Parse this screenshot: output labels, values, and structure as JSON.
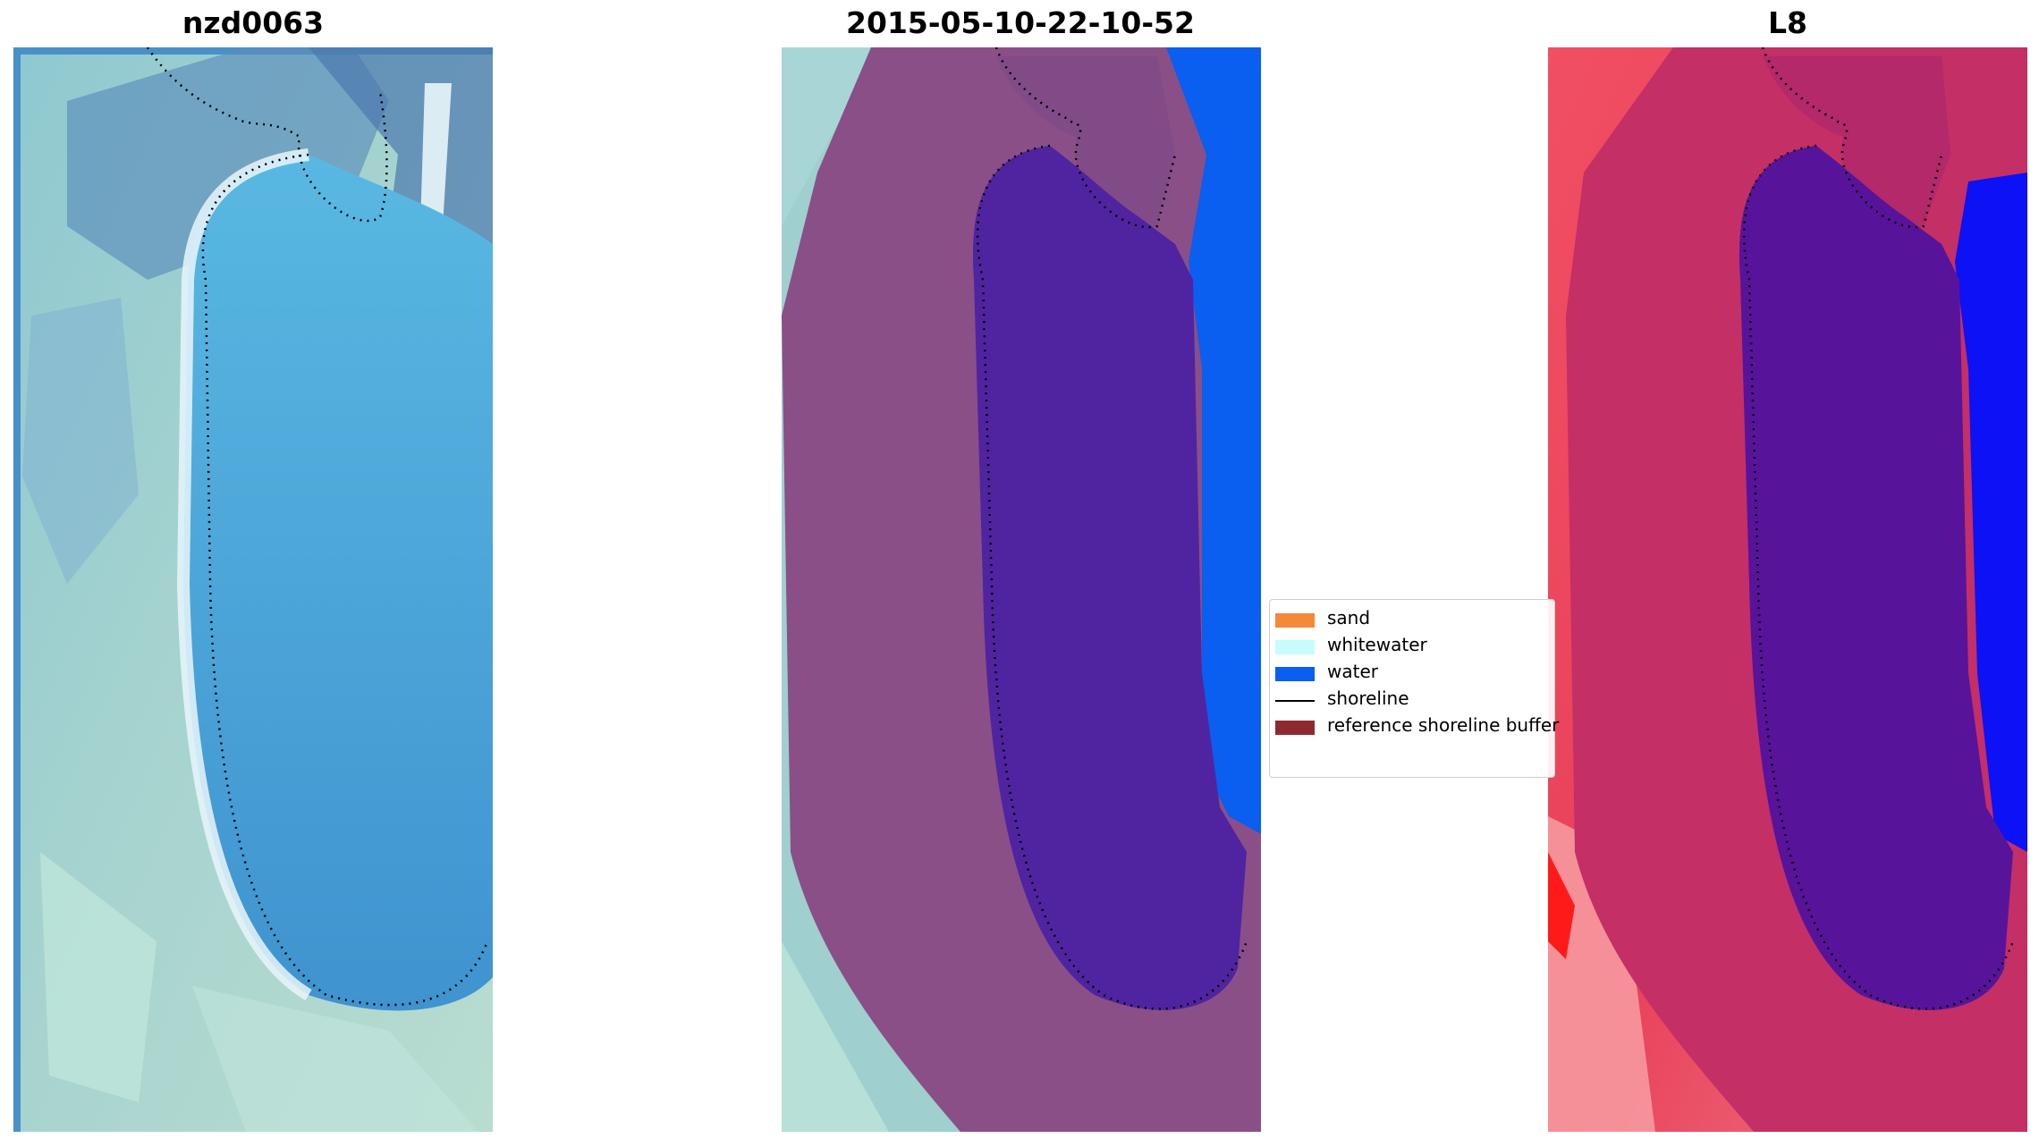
{
  "panels": [
    {
      "title": "nzd0063",
      "name": "rgb-image-panel"
    },
    {
      "title": "2015-05-10-22-10-52",
      "name": "classified-image-panel"
    },
    {
      "title": "L8",
      "name": "mndwi-image-panel"
    }
  ],
  "legend": {
    "items": [
      {
        "label": "sand",
        "color": "#f4893a",
        "kind": "patch"
      },
      {
        "label": "whitewater",
        "color": "#c8fbfb",
        "kind": "patch"
      },
      {
        "label": "water",
        "color": "#0a5ef0",
        "kind": "patch"
      },
      {
        "label": "shoreline",
        "color": "#000000",
        "kind": "line"
      },
      {
        "label": "reference shoreline buffer",
        "color": "#8e2a2f",
        "kind": "patch"
      }
    ]
  },
  "colors": {
    "panel1": {
      "land": "#9fcfce",
      "surf": "#5ea8d8",
      "water": "#4aa7dc",
      "highlight": "#e6f4fb"
    },
    "panel2": {
      "land": "#9fcfce",
      "buffer": "#8a4f86",
      "water_class": "#5024a0",
      "ocean": "#0a5ef0"
    },
    "panel3": {
      "land": "#e83a55",
      "buffer": "#c42f66",
      "water_class": "#57149a",
      "ocean": "#0d11f5"
    }
  }
}
